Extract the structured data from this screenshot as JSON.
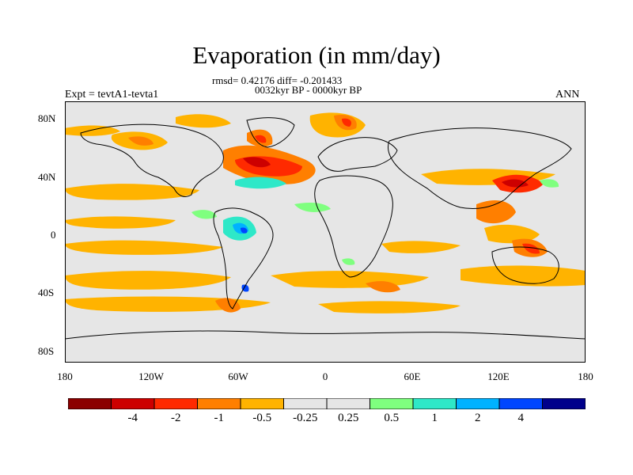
{
  "title": "Evaporation (in mm/day)",
  "stats": "rmsd= 0.42176 diff= -0.201433",
  "period": "0032kyr BP - 0000kyr BP",
  "expt": "Expt = tevtA1-tevta1",
  "season": "ANN",
  "lat_labels": [
    "80N",
    "40N",
    "0",
    "40S",
    "80S"
  ],
  "lon_labels": [
    "180",
    "120W",
    "60W",
    "0",
    "60E",
    "120E",
    "180"
  ],
  "colorbar": {
    "colors": [
      "#8b0000",
      "#cd0000",
      "#ff2a00",
      "#ff7f00",
      "#ffb300",
      "#e6e6e6",
      "#e6e6e6",
      "#7fff7f",
      "#2ee8c8",
      "#00b2ff",
      "#0046ff",
      "#00008b"
    ],
    "labels": [
      "-4",
      "-2",
      "-1",
      "-0.5",
      "-0.25",
      "0.25",
      "0.5",
      "1",
      "2",
      "4"
    ]
  }
}
